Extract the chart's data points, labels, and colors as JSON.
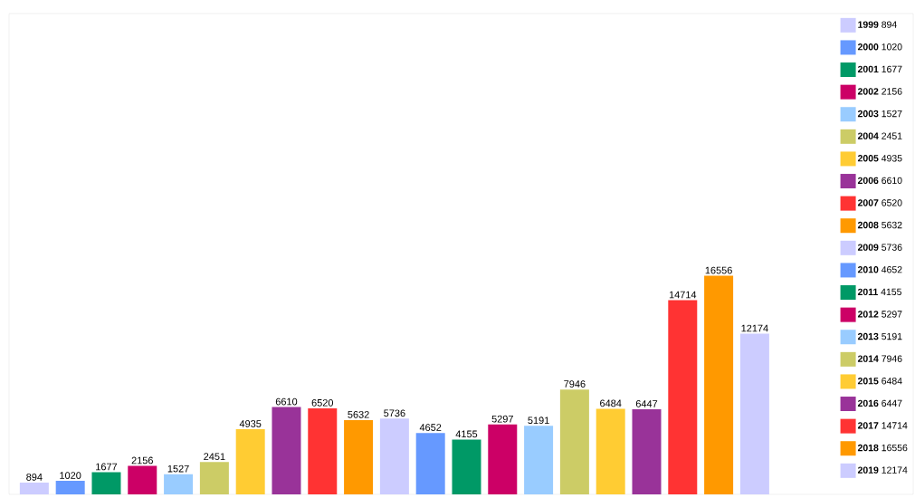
{
  "chart_data": {
    "type": "bar",
    "categories": [
      null,
      null,
      null,
      null,
      null,
      null,
      null,
      null,
      null,
      null,
      null,
      null,
      null,
      null,
      null,
      null,
      null,
      null,
      null,
      null,
      null
    ],
    "series": [
      {
        "name": "**1999** 894",
        "color": "#ccccff",
        "values": [
          894,
          null,
          null,
          null,
          null,
          null,
          null,
          null,
          null,
          null,
          null,
          null,
          null,
          null,
          null,
          null,
          null,
          null,
          null,
          null,
          null
        ]
      },
      {
        "name": "**2000** 1020",
        "color": "#6699ff",
        "values": [
          null,
          1020,
          null,
          null,
          null,
          null,
          null,
          null,
          null,
          null,
          null,
          null,
          null,
          null,
          null,
          null,
          null,
          null,
          null,
          null,
          null
        ]
      },
      {
        "name": "**2001** 1677",
        "color": "#009966",
        "values": [
          null,
          null,
          1677,
          null,
          null,
          null,
          null,
          null,
          null,
          null,
          null,
          null,
          null,
          null,
          null,
          null,
          null,
          null,
          null,
          null,
          null
        ]
      },
      {
        "name": "**2002** 2156",
        "color": "#cc0066",
        "values": [
          null,
          null,
          null,
          2156,
          null,
          null,
          null,
          null,
          null,
          null,
          null,
          null,
          null,
          null,
          null,
          null,
          null,
          null,
          null,
          null,
          null
        ]
      },
      {
        "name": "**2003** 1527",
        "color": "#99ccff",
        "values": [
          null,
          null,
          null,
          null,
          1527,
          null,
          null,
          null,
          null,
          null,
          null,
          null,
          null,
          null,
          null,
          null,
          null,
          null,
          null,
          null,
          null
        ]
      },
      {
        "name": "**2004** 2451",
        "color": "#cccc66",
        "values": [
          null,
          null,
          null,
          null,
          null,
          2451,
          null,
          null,
          null,
          null,
          null,
          null,
          null,
          null,
          null,
          null,
          null,
          null,
          null,
          null,
          null
        ]
      },
      {
        "name": "**2005** 4935",
        "color": "#ffcc33",
        "values": [
          null,
          null,
          null,
          null,
          null,
          null,
          4935,
          null,
          null,
          null,
          null,
          null,
          null,
          null,
          null,
          null,
          null,
          null,
          null,
          null,
          null
        ]
      },
      {
        "name": "**2006** 6610",
        "color": "#993399",
        "values": [
          null,
          null,
          null,
          null,
          null,
          null,
          null,
          6610,
          null,
          null,
          null,
          null,
          null,
          null,
          null,
          null,
          null,
          null,
          null,
          null,
          null
        ]
      },
      {
        "name": "**2007** 6520",
        "color": "#ff3333",
        "values": [
          null,
          null,
          null,
          null,
          null,
          null,
          null,
          null,
          6520,
          null,
          null,
          null,
          null,
          null,
          null,
          null,
          null,
          null,
          null,
          null,
          null
        ]
      },
      {
        "name": "**2008** 5632",
        "color": "#ff9900",
        "values": [
          null,
          null,
          null,
          null,
          null,
          null,
          null,
          null,
          null,
          5632,
          null,
          null,
          null,
          null,
          null,
          null,
          null,
          null,
          null,
          null,
          null
        ]
      },
      {
        "name": "**2009** 5736",
        "color": "#ccccff",
        "values": [
          null,
          null,
          null,
          null,
          null,
          null,
          null,
          null,
          null,
          null,
          5736,
          null,
          null,
          null,
          null,
          null,
          null,
          null,
          null,
          null,
          null
        ]
      },
      {
        "name": "**2010** 4652",
        "color": "#6699ff",
        "values": [
          null,
          null,
          null,
          null,
          null,
          null,
          null,
          null,
          null,
          null,
          null,
          4652,
          null,
          null,
          null,
          null,
          null,
          null,
          null,
          null,
          null
        ]
      },
      {
        "name": "**2011** 4155",
        "color": "#009966",
        "values": [
          null,
          null,
          null,
          null,
          null,
          null,
          null,
          null,
          null,
          null,
          null,
          null,
          4155,
          null,
          null,
          null,
          null,
          null,
          null,
          null,
          null
        ]
      },
      {
        "name": "**2012** 5297",
        "color": "#cc0066",
        "values": [
          null,
          null,
          null,
          null,
          null,
          null,
          null,
          null,
          null,
          null,
          null,
          null,
          null,
          5297,
          null,
          null,
          null,
          null,
          null,
          null,
          null
        ]
      },
      {
        "name": "**2013** 5191",
        "color": "#99ccff",
        "values": [
          null,
          null,
          null,
          null,
          null,
          null,
          null,
          null,
          null,
          null,
          null,
          null,
          null,
          null,
          5191,
          null,
          null,
          null,
          null,
          null,
          null
        ]
      },
      {
        "name": "**2014** 7946",
        "color": "#cccc66",
        "values": [
          null,
          null,
          null,
          null,
          null,
          null,
          null,
          null,
          null,
          null,
          null,
          null,
          null,
          null,
          null,
          7946,
          null,
          null,
          null,
          null,
          null
        ]
      },
      {
        "name": "**2015** 6484",
        "color": "#ffcc33",
        "values": [
          null,
          null,
          null,
          null,
          null,
          null,
          null,
          null,
          null,
          null,
          null,
          null,
          null,
          null,
          null,
          null,
          6484,
          null,
          null,
          null,
          null
        ]
      },
      {
        "name": "**2016** 6447",
        "color": "#993399",
        "values": [
          null,
          null,
          null,
          null,
          null,
          null,
          null,
          null,
          null,
          null,
          null,
          null,
          null,
          null,
          null,
          null,
          null,
          6447,
          null,
          null,
          null
        ]
      },
      {
        "name": "**2017** 14714",
        "color": "#ff3333",
        "values": [
          null,
          null,
          null,
          null,
          null,
          null,
          null,
          null,
          null,
          null,
          null,
          null,
          null,
          null,
          null,
          null,
          null,
          null,
          14714,
          null,
          null
        ]
      },
      {
        "name": "**2018** 16556",
        "color": "#ff9900",
        "values": [
          null,
          null,
          null,
          null,
          null,
          null,
          null,
          null,
          null,
          null,
          null,
          null,
          null,
          null,
          null,
          null,
          null,
          null,
          null,
          16556,
          null
        ]
      },
      {
        "name": "**2019** 12174",
        "color": "#ccccff",
        "values": [
          null,
          null,
          null,
          null,
          null,
          null,
          null,
          null,
          null,
          null,
          null,
          null,
          null,
          null,
          null,
          null,
          null,
          null,
          null,
          null,
          12174
        ]
      }
    ],
    "stacked": true,
    "data_labels": true,
    "legend": "right"
  }
}
